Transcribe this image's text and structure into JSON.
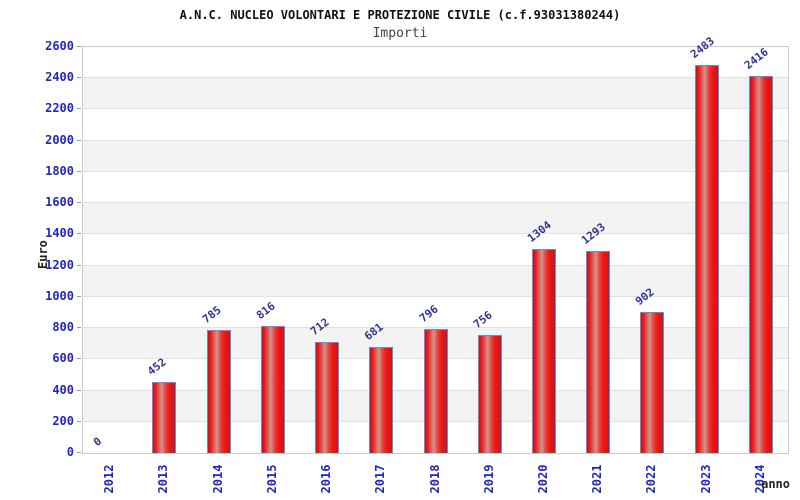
{
  "chart_data": {
    "type": "bar",
    "title": "A.N.C. NUCLEO VOLONTARI E PROTEZIONE CIVILE (c.f.93031380244)",
    "subtitle": "Importi",
    "xlabel": "anno",
    "ylabel": "Euro",
    "categories": [
      "2012",
      "2013",
      "2014",
      "2015",
      "2016",
      "2017",
      "2018",
      "2019",
      "2020",
      "2021",
      "2022",
      "2023",
      "2024"
    ],
    "values": [
      0,
      452,
      785,
      816,
      712,
      681,
      796,
      756,
      1304,
      1293,
      902,
      2483,
      2416
    ],
    "ylim": [
      0,
      2600
    ],
    "ytick_step": 200,
    "grid": "horizontal gridlines with alternating gray/white bands",
    "legend_position": "none",
    "colors": {
      "bar_fill_edge": "#ee1a1a",
      "bar_fill_middle": "#d0938d",
      "bar_border": "#4a9ae1",
      "tick_label_text": "#2323cc",
      "value_label_text": "#333399",
      "band_gray": "#f3f3f3",
      "gridline": "#e1e1e1",
      "title_text": "#111111",
      "subtitle_text": "#444444",
      "axis_label_text": "#222222",
      "plot_border": "#cccccc"
    }
  }
}
